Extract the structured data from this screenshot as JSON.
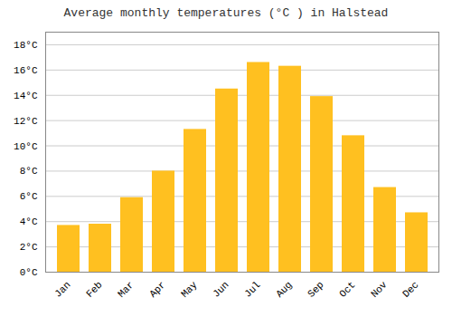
{
  "chart_data": {
    "type": "bar",
    "title": "Average monthly temperatures (°C ) in Halstead",
    "categories": [
      "Jan",
      "Feb",
      "Mar",
      "Apr",
      "May",
      "Jun",
      "Jul",
      "Aug",
      "Sep",
      "Oct",
      "Nov",
      "Dec"
    ],
    "values": [
      3.7,
      3.8,
      5.9,
      8.0,
      11.3,
      14.5,
      16.6,
      16.3,
      13.9,
      10.8,
      6.7,
      4.7
    ],
    "color": "#FFC020",
    "ylim": [
      0,
      19
    ],
    "yticks": [
      {
        "value": 0,
        "label": "0°C"
      },
      {
        "value": 2,
        "label": "2°C"
      },
      {
        "value": 4,
        "label": "4°C"
      },
      {
        "value": 6,
        "label": "6°C"
      },
      {
        "value": 8,
        "label": "8°C"
      },
      {
        "value": 10,
        "label": "10°C"
      },
      {
        "value": 12,
        "label": "12°C"
      },
      {
        "value": 14,
        "label": "14°C"
      },
      {
        "value": 16,
        "label": "16°C"
      },
      {
        "value": 18,
        "label": "18°C"
      }
    ],
    "grid": true
  }
}
